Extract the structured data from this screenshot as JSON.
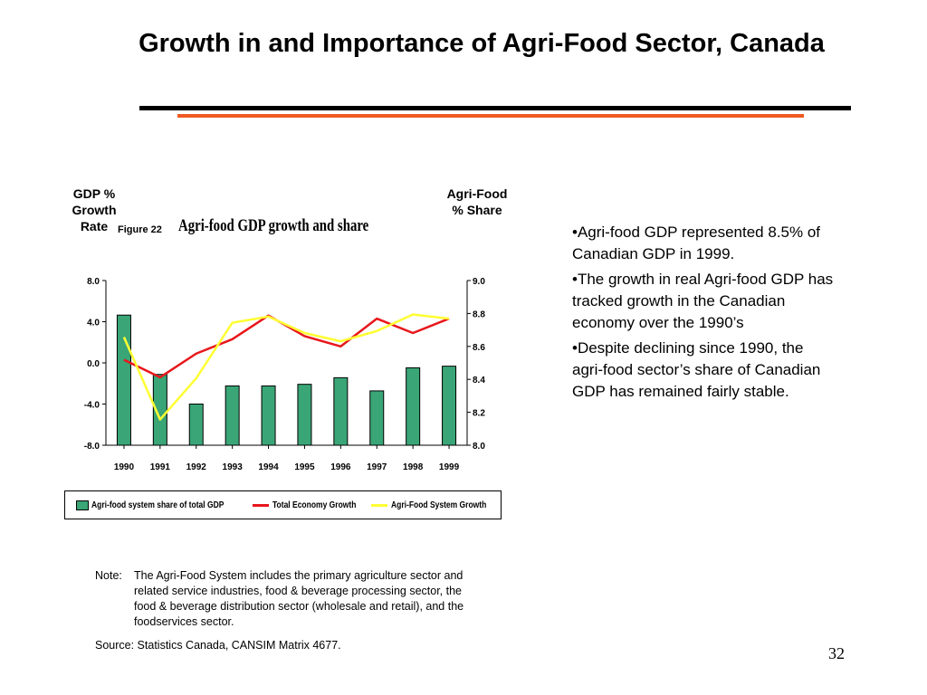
{
  "slide": {
    "title": "Growth in and Importance of Agri-Food Sector, Canada",
    "page_number": "32",
    "colors": {
      "rule_top": "#000000",
      "rule_bottom": "#f05a22"
    }
  },
  "figure": {
    "label": "Figure 22",
    "left_axis_title": "GDP % Growth Rate",
    "right_axis_title": "Agri-Food % Share"
  },
  "chart_data": {
    "type": "bar",
    "title": "Agri-food GDP growth and share",
    "categories": [
      "1990",
      "1991",
      "1992",
      "1993",
      "1994",
      "1995",
      "1996",
      "1997",
      "1998",
      "1999"
    ],
    "left_axis": {
      "ylim": [
        -8.0,
        8.0
      ],
      "ticks": [
        "8.0",
        "4.0",
        "0.0",
        "-4.0",
        "-8.0"
      ]
    },
    "right_axis": {
      "ylim": [
        8.0,
        9.0
      ],
      "ticks": [
        "9.0",
        "8.8",
        "8.6",
        "8.4",
        "8.2",
        "8.0"
      ]
    },
    "series": [
      {
        "name": "Agri-food system share of total GDP",
        "kind": "bar",
        "axis": "right",
        "color": "#3aa576",
        "values": [
          8.79,
          8.43,
          8.25,
          8.36,
          8.36,
          8.37,
          8.41,
          8.33,
          8.47,
          8.48
        ]
      },
      {
        "name": "Total Economy Growth",
        "kind": "line",
        "axis": "left",
        "color": "#e8161b",
        "values": [
          0.3,
          -1.4,
          0.9,
          2.3,
          4.6,
          2.6,
          1.6,
          4.3,
          2.9,
          4.3
        ]
      },
      {
        "name": "Agri-Food System Growth",
        "kind": "line",
        "axis": "left",
        "color": "#ffff33",
        "values": [
          2.5,
          -5.5,
          -1.5,
          3.9,
          4.5,
          2.9,
          2.1,
          3.1,
          4.7,
          4.3
        ]
      }
    ],
    "grid": false,
    "legend_position": "bottom"
  },
  "bullets": [
    "•Agri-food GDP represented 8.5% of Canadian GDP in 1999.",
    "•The growth in real Agri-food GDP has tracked growth in the Canadian economy over the 1990’s",
    "•Despite declining since 1990, the agri-food sector’s share of Canadian GDP has remained fairly stable."
  ],
  "note": {
    "label": "Note:",
    "text": "The Agri-Food System includes the primary agriculture sector and related service industries, food & beverage processing sector, the food & beverage distribution sector (wholesale and retail), and the foodservices sector."
  },
  "source": "Source:  Statistics Canada, CANSIM Matrix 4677."
}
